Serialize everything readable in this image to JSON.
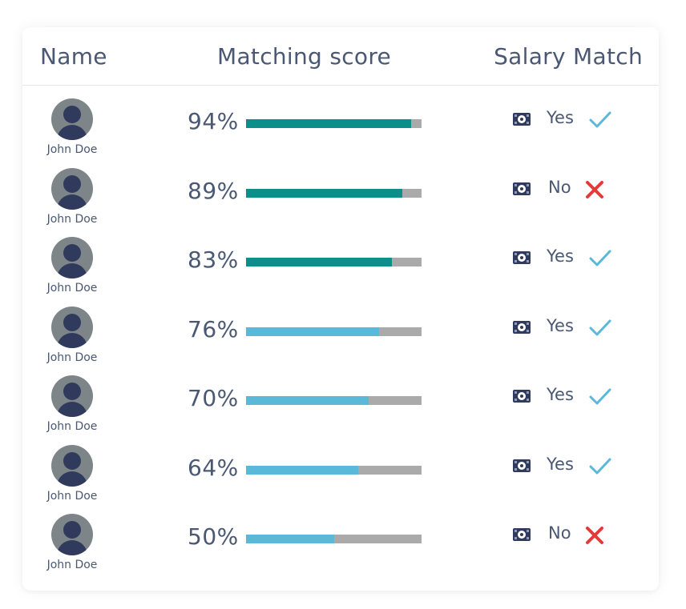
{
  "table": {
    "headers": {
      "name": "Name",
      "score": "Matching score",
      "salary": "Salary Match"
    },
    "colors": {
      "high_score": "#0c8f8a",
      "low_score": "#5ab9d8",
      "track": "#aaaaaa",
      "check": "#5ab9d8",
      "cross": "#e53a3a"
    },
    "rows": [
      {
        "name": "John Doe",
        "score_label": "94%",
        "score": 0.94,
        "tier": "high",
        "salary_label": "Yes",
        "match": true
      },
      {
        "name": "John Doe",
        "score_label": "89%",
        "score": 0.89,
        "tier": "high",
        "salary_label": "No",
        "match": false
      },
      {
        "name": "John Doe",
        "score_label": "83%",
        "score": 0.83,
        "tier": "high",
        "salary_label": "Yes",
        "match": true
      },
      {
        "name": "John Doe",
        "score_label": "76%",
        "score": 0.76,
        "tier": "low",
        "salary_label": "Yes",
        "match": true
      },
      {
        "name": "John Doe",
        "score_label": "70%",
        "score": 0.7,
        "tier": "low",
        "salary_label": "Yes",
        "match": true
      },
      {
        "name": "John Doe",
        "score_label": "64%",
        "score": 0.64,
        "tier": "low",
        "salary_label": "Yes",
        "match": true
      },
      {
        "name": "John Doe",
        "score_label": "50%",
        "score": 0.5,
        "tier": "low",
        "salary_label": "No",
        "match": false
      }
    ],
    "icons": {
      "avatar": "user-avatar-icon",
      "money": "money-icon",
      "check": "check-icon",
      "cross": "cross-icon"
    }
  }
}
